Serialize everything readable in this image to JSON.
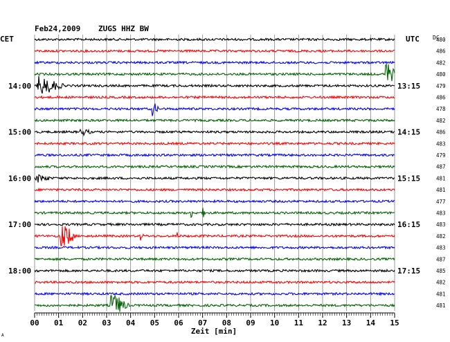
{
  "header": {
    "date": "Feb24,2009",
    "station": "ZUGS HHZ BW",
    "left_tz": "CET",
    "right_tz": "UTC",
    "dc_label": "DC"
  },
  "footer": {
    "xlabel": "Zeit [min]",
    "corner_mark": "A"
  },
  "colors": {
    "trace_cycle": [
      "#000000",
      "#ff0000",
      "#0000ff",
      "#006400"
    ],
    "grid": "#808080"
  },
  "chart_data": {
    "type": "line",
    "title": "Feb24,2009   ZUGS HHZ BW",
    "xlabel": "Zeit [min]",
    "ylabel": "",
    "x_range": [
      0,
      15
    ],
    "x_ticks": [
      "00",
      "01",
      "02",
      "03",
      "04",
      "05",
      "06",
      "07",
      "08",
      "09",
      "10",
      "11",
      "12",
      "13",
      "14",
      "15"
    ],
    "minutes_per_trace": 15,
    "trace_count": 24,
    "left_hour_labels": [
      {
        "trace": 4,
        "label": "14:00"
      },
      {
        "trace": 8,
        "label": "15:00"
      },
      {
        "trace": 12,
        "label": "16:00"
      },
      {
        "trace": 16,
        "label": "17:00"
      },
      {
        "trace": 20,
        "label": "18:00"
      }
    ],
    "right_hour_labels": [
      {
        "trace": 4,
        "label": "13:15"
      },
      {
        "trace": 8,
        "label": "14:15"
      },
      {
        "trace": 12,
        "label": "15:15"
      },
      {
        "trace": 16,
        "label": "16:15"
      },
      {
        "trace": 20,
        "label": "17:15"
      }
    ],
    "dc_offsets": [
      "480",
      "486",
      "482",
      "480",
      "479",
      "486",
      "478",
      "482",
      "486",
      "483",
      "479",
      "487",
      "481",
      "481",
      "477",
      "483",
      "483",
      "482",
      "483",
      "487",
      "485",
      "482",
      "481",
      "481"
    ],
    "events": [
      {
        "trace": 3,
        "minute": 14.6,
        "amplitude": 1.4,
        "duration_min": 0.5
      },
      {
        "trace": 4,
        "minute": 0.1,
        "amplitude": 1.0,
        "duration_min": 1.2
      },
      {
        "trace": 6,
        "minute": 4.9,
        "amplitude": 0.7,
        "duration_min": 0.3
      },
      {
        "trace": 8,
        "minute": 1.9,
        "amplitude": 0.35,
        "duration_min": 0.5
      },
      {
        "trace": 12,
        "minute": 0.05,
        "amplitude": 0.4,
        "duration_min": 0.7
      },
      {
        "trace": 15,
        "minute": 6.5,
        "amplitude": 0.45,
        "duration_min": 0.2
      },
      {
        "trace": 15,
        "minute": 7.0,
        "amplitude": 0.45,
        "duration_min": 0.15
      },
      {
        "trace": 17,
        "minute": 1.05,
        "amplitude": 1.7,
        "duration_min": 0.7
      },
      {
        "trace": 17,
        "minute": 4.4,
        "amplitude": 0.5,
        "duration_min": 0.15
      },
      {
        "trace": 17,
        "minute": 5.9,
        "amplitude": 0.5,
        "duration_min": 0.15
      },
      {
        "trace": 23,
        "minute": 3.15,
        "amplitude": 1.4,
        "duration_min": 0.8
      }
    ],
    "grid": true
  }
}
